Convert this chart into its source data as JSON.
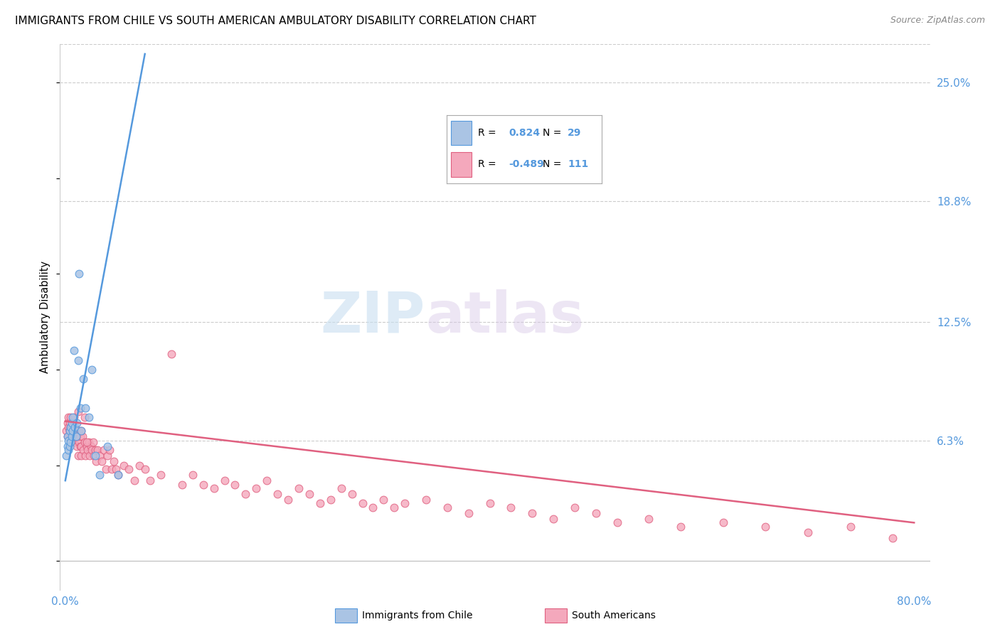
{
  "title": "IMMIGRANTS FROM CHILE VS SOUTH AMERICAN AMBULATORY DISABILITY CORRELATION CHART",
  "source": "Source: ZipAtlas.com",
  "ylabel": "Ambulatory Disability",
  "ytick_labels": [
    "25.0%",
    "18.8%",
    "12.5%",
    "6.3%"
  ],
  "ytick_values": [
    0.25,
    0.188,
    0.125,
    0.063
  ],
  "xlim": [
    -0.005,
    0.815
  ],
  "ylim": [
    -0.015,
    0.27
  ],
  "legend_chile_r": "0.824",
  "legend_chile_n": "29",
  "legend_sa_r": "-0.489",
  "legend_sa_n": "111",
  "chile_color": "#aac4e4",
  "chile_line_color": "#5599dd",
  "sa_color": "#f4a8bc",
  "sa_line_color": "#e06080",
  "watermark_zip": "ZIP",
  "watermark_atlas": "atlas",
  "chile_scatter_x": [
    0.001,
    0.002,
    0.002,
    0.003,
    0.003,
    0.004,
    0.004,
    0.005,
    0.005,
    0.006,
    0.006,
    0.007,
    0.007,
    0.008,
    0.009,
    0.01,
    0.011,
    0.012,
    0.013,
    0.014,
    0.015,
    0.017,
    0.019,
    0.022,
    0.025,
    0.028,
    0.032,
    0.04,
    0.05
  ],
  "chile_scatter_y": [
    0.055,
    0.06,
    0.065,
    0.058,
    0.063,
    0.06,
    0.068,
    0.062,
    0.07,
    0.065,
    0.072,
    0.068,
    0.075,
    0.11,
    0.07,
    0.065,
    0.072,
    0.105,
    0.15,
    0.08,
    0.068,
    0.095,
    0.08,
    0.075,
    0.1,
    0.055,
    0.045,
    0.06,
    0.045
  ],
  "sa_scatter_x": [
    0.001,
    0.002,
    0.002,
    0.003,
    0.003,
    0.003,
    0.004,
    0.004,
    0.005,
    0.005,
    0.005,
    0.006,
    0.006,
    0.007,
    0.007,
    0.008,
    0.008,
    0.009,
    0.009,
    0.01,
    0.01,
    0.011,
    0.011,
    0.012,
    0.012,
    0.013,
    0.013,
    0.014,
    0.014,
    0.015,
    0.015,
    0.016,
    0.017,
    0.018,
    0.019,
    0.02,
    0.021,
    0.022,
    0.023,
    0.024,
    0.025,
    0.026,
    0.027,
    0.028,
    0.029,
    0.03,
    0.032,
    0.034,
    0.036,
    0.038,
    0.04,
    0.042,
    0.044,
    0.046,
    0.048,
    0.05,
    0.055,
    0.06,
    0.065,
    0.07,
    0.075,
    0.08,
    0.09,
    0.1,
    0.11,
    0.12,
    0.13,
    0.14,
    0.15,
    0.16,
    0.17,
    0.18,
    0.19,
    0.2,
    0.21,
    0.22,
    0.23,
    0.24,
    0.25,
    0.26,
    0.27,
    0.28,
    0.29,
    0.3,
    0.31,
    0.32,
    0.34,
    0.36,
    0.38,
    0.4,
    0.42,
    0.44,
    0.46,
    0.48,
    0.5,
    0.52,
    0.55,
    0.58,
    0.62,
    0.66,
    0.7,
    0.74,
    0.78,
    0.004,
    0.006,
    0.008,
    0.01,
    0.012,
    0.015,
    0.018,
    0.02
  ],
  "sa_scatter_y": [
    0.068,
    0.072,
    0.065,
    0.07,
    0.075,
    0.065,
    0.068,
    0.072,
    0.065,
    0.07,
    0.075,
    0.068,
    0.063,
    0.07,
    0.065,
    0.068,
    0.062,
    0.065,
    0.07,
    0.065,
    0.068,
    0.06,
    0.065,
    0.068,
    0.055,
    0.062,
    0.068,
    0.06,
    0.065,
    0.055,
    0.06,
    0.065,
    0.058,
    0.062,
    0.055,
    0.06,
    0.058,
    0.062,
    0.055,
    0.06,
    0.058,
    0.062,
    0.055,
    0.058,
    0.052,
    0.058,
    0.055,
    0.052,
    0.058,
    0.048,
    0.055,
    0.058,
    0.048,
    0.052,
    0.048,
    0.045,
    0.05,
    0.048,
    0.042,
    0.05,
    0.048,
    0.042,
    0.045,
    0.108,
    0.04,
    0.045,
    0.04,
    0.038,
    0.042,
    0.04,
    0.035,
    0.038,
    0.042,
    0.035,
    0.032,
    0.038,
    0.035,
    0.03,
    0.032,
    0.038,
    0.035,
    0.03,
    0.028,
    0.032,
    0.028,
    0.03,
    0.032,
    0.028,
    0.025,
    0.03,
    0.028,
    0.025,
    0.022,
    0.028,
    0.025,
    0.02,
    0.022,
    0.018,
    0.02,
    0.018,
    0.015,
    0.018,
    0.012,
    0.068,
    0.07,
    0.075,
    0.065,
    0.078,
    0.068,
    0.075,
    0.062
  ],
  "chile_line_x0": 0.0,
  "chile_line_y0": 0.042,
  "chile_line_x1": 0.075,
  "chile_line_y1": 0.265,
  "sa_line_x0": 0.0,
  "sa_line_y0": 0.073,
  "sa_line_x1": 0.8,
  "sa_line_y1": 0.02
}
